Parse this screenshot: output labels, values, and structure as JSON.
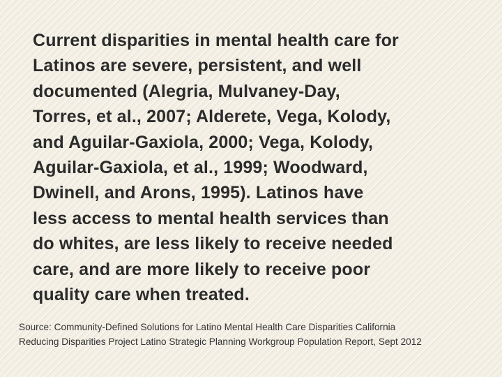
{
  "slide": {
    "body_text": "Current disparities in mental health care for\nLatinos are severe, persistent, and well\ndocumented (Alegria, Mulvaney-Day,\nTorres, et al., 2007; Alderete, Vega, Kolody,\nand Aguilar-Gaxiola, 2000; Vega, Kolody,\nAguilar-Gaxiola, et al., 1999; Woodward,\nDwinell, and Arons, 1995).  Latinos have\nless access to mental health services than\ndo whites, are less likely to receive needed\ncare, and are more likely to receive poor\nquality care when treated.",
    "source_text": "Source: Community-Defined Solutions for Latino Mental Health Care Disparities California\nReducing Disparities Project Latino Strategic Planning Workgroup Population Report, Sept 2012"
  },
  "colors": {
    "background": "#f3efe4",
    "text": "#2b2b2b"
  }
}
